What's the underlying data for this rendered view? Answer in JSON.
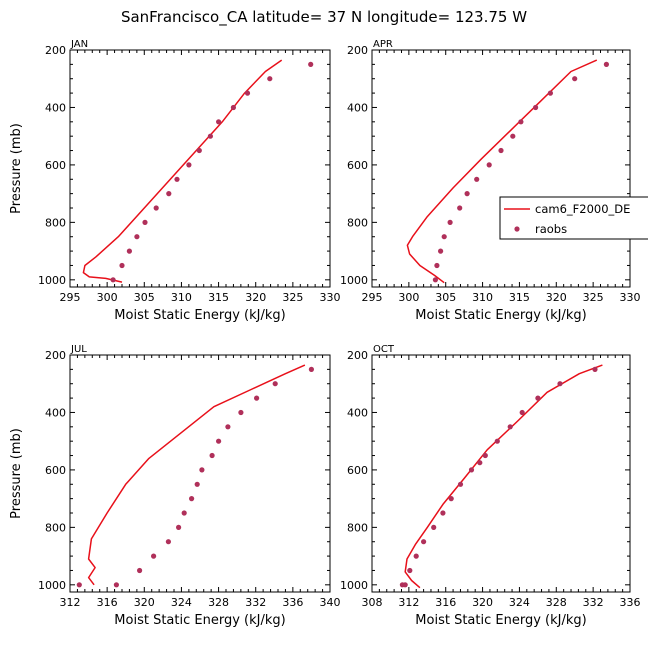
{
  "title": "SanFrancisco_CA  latitude= 37 N longitude= 123.75 W",
  "colors": {
    "model": "#e8101a",
    "obs": "#b0305a"
  },
  "legend": {
    "model_label": "cam6_F2000_DE",
    "obs_label": "raobs"
  },
  "chart_data": [
    {
      "type": "line",
      "panel": "JAN",
      "xlabel": "Moist Static Energy (kJ/kg)",
      "ylabel": "Pressure (mb)",
      "xlim": [
        295,
        330
      ],
      "xticks": [
        295,
        300,
        305,
        310,
        315,
        320,
        325,
        330
      ],
      "ylim": [
        1025,
        200
      ],
      "yticks": [
        200,
        400,
        600,
        800,
        1000
      ],
      "series": [
        {
          "name": "cam6_F2000_DE",
          "style": "line",
          "x": [
            323.5,
            321.3,
            318.5,
            315.5,
            312,
            308.5,
            305,
            301.5,
            298.5,
            297.0,
            296.8,
            297.6,
            299.8,
            302.0
          ],
          "y": [
            235,
            275,
            350,
            450,
            550,
            650,
            750,
            850,
            920,
            950,
            975,
            990,
            995,
            1008
          ]
        },
        {
          "name": "raobs",
          "style": "scatter",
          "x": [
            327.4,
            321.9,
            318.9,
            317.0,
            315.0,
            313.9,
            312.4,
            311.0,
            309.4,
            308.3,
            306.6,
            305.1,
            304.0,
            303.0,
            302.0,
            300.8
          ],
          "y": [
            250,
            300,
            350,
            400,
            450,
            500,
            550,
            600,
            650,
            700,
            750,
            800,
            850,
            900,
            950,
            1000
          ]
        }
      ]
    },
    {
      "type": "line",
      "panel": "APR",
      "xlabel": "Moist Static Energy (kJ/kg)",
      "ylabel": "",
      "xlim": [
        295,
        330
      ],
      "xticks": [
        295,
        300,
        305,
        310,
        315,
        320,
        325,
        330
      ],
      "ylim": [
        1025,
        200
      ],
      "yticks": [
        200,
        400,
        600,
        800,
        1000
      ],
      "series": [
        {
          "name": "cam6_F2000_DE",
          "style": "line",
          "x": [
            325.5,
            322.0,
            317.8,
            313.8,
            309.8,
            306.0,
            302.5,
            300.5,
            299.8,
            300.1,
            301.5,
            303.5,
            304.8
          ],
          "y": [
            235,
            275,
            380,
            480,
            580,
            680,
            780,
            850,
            880,
            910,
            950,
            985,
            1010
          ]
        },
        {
          "name": "raobs",
          "style": "scatter",
          "x": [
            326.8,
            322.5,
            319.2,
            317.2,
            315.2,
            314.1,
            312.5,
            310.9,
            309.2,
            307.9,
            306.9,
            305.6,
            304.8,
            304.3,
            303.8,
            303.6
          ],
          "y": [
            250,
            300,
            350,
            400,
            450,
            500,
            550,
            600,
            650,
            700,
            750,
            800,
            850,
            900,
            950,
            1000
          ]
        }
      ]
    },
    {
      "type": "line",
      "panel": "JUL",
      "xlabel": "Moist Static Energy (kJ/kg)",
      "ylabel": "Pressure (mb)",
      "xlim": [
        312,
        340
      ],
      "xticks": [
        312,
        316,
        320,
        324,
        328,
        332,
        336,
        340
      ],
      "ylim": [
        1025,
        200
      ],
      "yticks": [
        200,
        400,
        600,
        800,
        1000
      ],
      "series": [
        {
          "name": "cam6_F2000_DE",
          "style": "line",
          "x": [
            337.3,
            335.2,
            331.5,
            327.5,
            324.0,
            320.5,
            318.0,
            316.0,
            314.3,
            314.0,
            314.7,
            314.0,
            314.6
          ],
          "y": [
            235,
            265,
            320,
            380,
            470,
            560,
            650,
            750,
            840,
            910,
            940,
            975,
            1000
          ]
        },
        {
          "name": "raobs",
          "style": "scatter",
          "x": [
            338.0,
            334.1,
            332.1,
            330.4,
            329.0,
            328.0,
            327.3,
            326.2,
            325.7,
            325.1,
            324.3,
            323.7,
            322.6,
            321.0,
            319.5,
            317.0,
            313.0
          ],
          "y": [
            250,
            300,
            350,
            400,
            450,
            500,
            550,
            600,
            650,
            700,
            750,
            800,
            850,
            900,
            950,
            1000,
            1000
          ]
        }
      ]
    },
    {
      "type": "line",
      "panel": "OCT",
      "xlabel": "Moist Static Energy (kJ/kg)",
      "ylabel": "",
      "xlim": [
        308,
        336
      ],
      "xticks": [
        308,
        312,
        316,
        320,
        324,
        328,
        332,
        336
      ],
      "ylim": [
        1025,
        200
      ],
      "yticks": [
        200,
        400,
        600,
        800,
        1000
      ],
      "series": [
        {
          "name": "cam6_F2000_DE",
          "style": "line",
          "x": [
            333.0,
            330.5,
            327.0,
            323.8,
            320.5,
            318.0,
            315.7,
            314.0,
            312.7,
            311.8,
            311.6,
            312.3,
            313.2
          ],
          "y": [
            235,
            265,
            330,
            430,
            530,
            630,
            720,
            800,
            860,
            910,
            955,
            985,
            1010
          ]
        },
        {
          "name": "raobs",
          "style": "scatter",
          "x": [
            332.2,
            328.4,
            326.0,
            324.3,
            323.0,
            321.6,
            320.3,
            319.7,
            318.8,
            317.6,
            316.6,
            315.7,
            314.7,
            313.6,
            312.8,
            312.1,
            311.6,
            311.3
          ],
          "y": [
            250,
            300,
            350,
            400,
            450,
            500,
            550,
            575,
            600,
            650,
            700,
            750,
            800,
            850,
            900,
            950,
            1000,
            1000
          ]
        }
      ]
    }
  ]
}
